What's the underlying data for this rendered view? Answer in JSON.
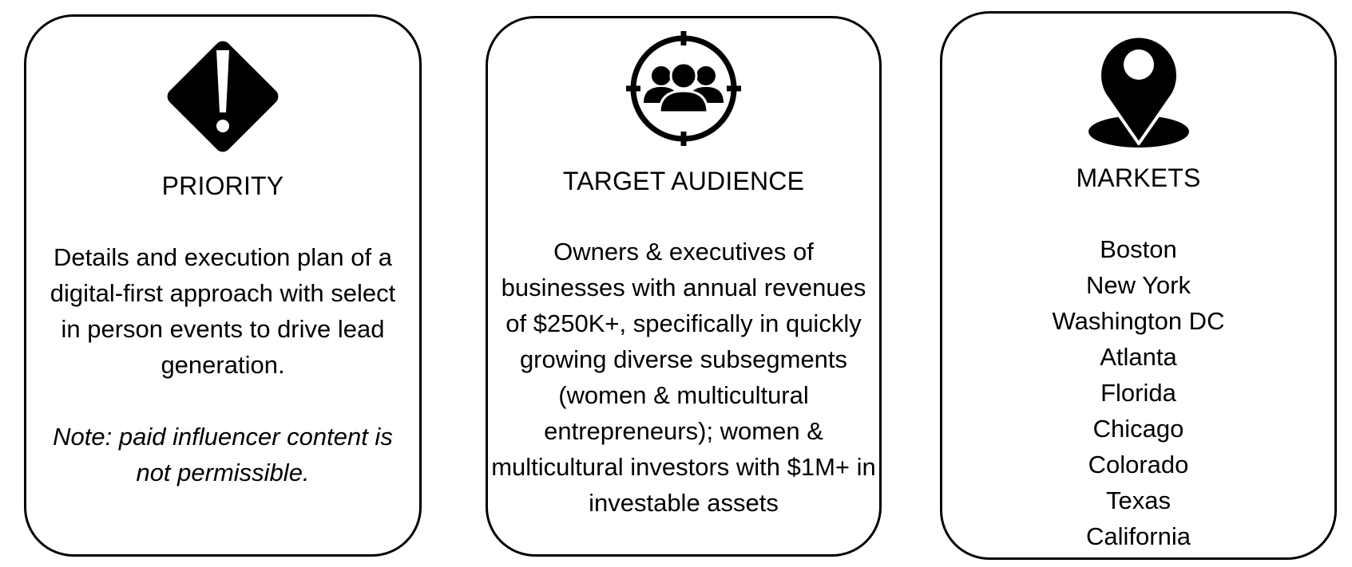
{
  "cards": {
    "priority": {
      "title": "PRIORITY",
      "icon": "warning-diamond-icon",
      "body": "Details and execution plan of a digital-first approach with select in person events to drive lead generation.",
      "note": "Note: paid influencer content is not permissible."
    },
    "target_audience": {
      "title": "TARGET AUDIENCE",
      "icon": "target-audience-icon",
      "body": "Owners & executives of businesses with annual revenues of $250K+, specifically in quickly growing diverse subsegments (women & multicultural entrepreneurs); women & multicultural investors with $1M+ in investable assets"
    },
    "markets": {
      "title": "MARKETS",
      "icon": "map-pin-icon",
      "items": [
        "Boston",
        "New York",
        "Washington DC",
        "Atlanta",
        "Florida",
        "Chicago",
        "Colorado",
        "Texas",
        "California"
      ]
    }
  },
  "colors": {
    "stroke": "#000000",
    "background": "#ffffff"
  }
}
